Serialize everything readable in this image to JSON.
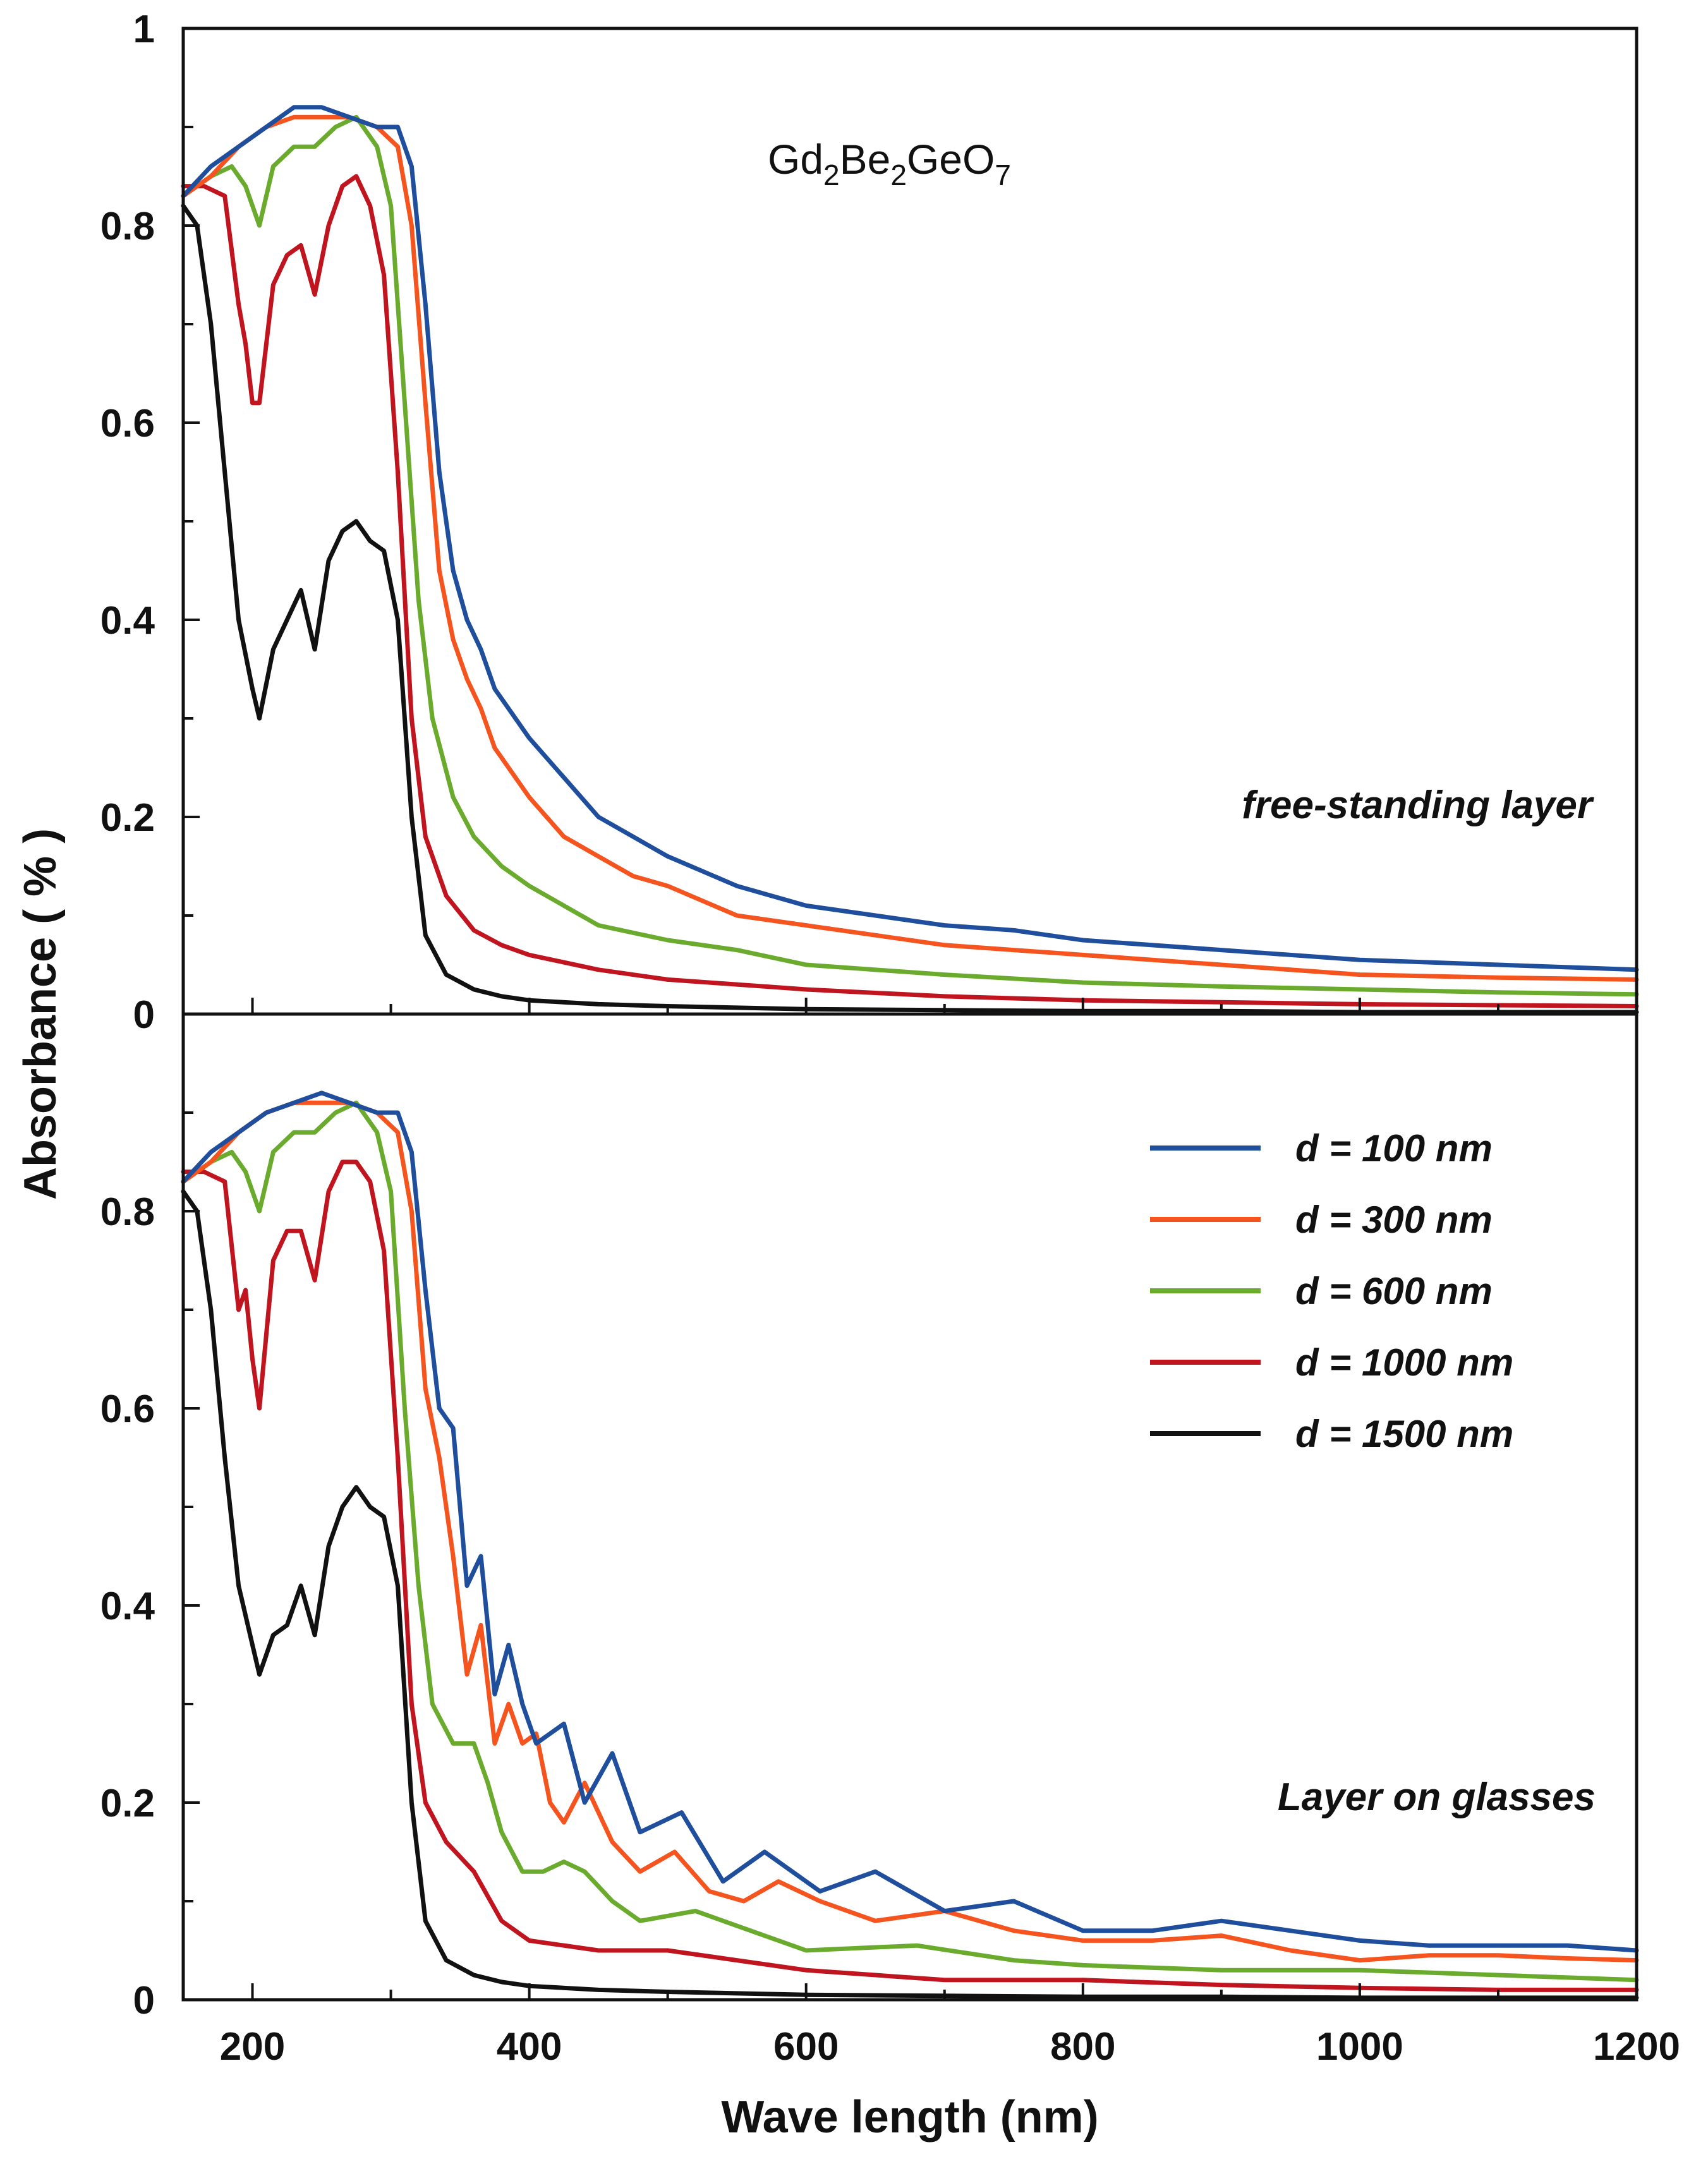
{
  "chart_data": [
    {
      "type": "line",
      "panel": "top",
      "title": "",
      "formula": {
        "parts": [
          "Gd",
          "2",
          "Be",
          "2",
          "GeO",
          "7"
        ]
      },
      "annotation": "free-standing layer",
      "xlabel": "",
      "ylabel": "Absorbance  ( % )",
      "xlim": [
        150,
        1200
      ],
      "ylim": [
        0,
        1
      ],
      "yticks": [
        0,
        0.2,
        0.4,
        0.6,
        0.8,
        1
      ],
      "ytick_labels": [
        "0",
        "0.2",
        "0.4",
        "0.6",
        "0.8",
        "1"
      ],
      "grid": false,
      "series": [
        {
          "name": "d = 100 nm",
          "color": "#1f4e9c",
          "x": [
            150,
            170,
            190,
            210,
            230,
            250,
            270,
            290,
            305,
            315,
            325,
            335,
            345,
            355,
            365,
            375,
            385,
            400,
            425,
            450,
            475,
            500,
            550,
            600,
            650,
            700,
            750,
            800,
            900,
            1000,
            1100,
            1200
          ],
          "y": [
            0.83,
            0.86,
            0.88,
            0.9,
            0.92,
            0.92,
            0.91,
            0.9,
            0.9,
            0.86,
            0.72,
            0.55,
            0.45,
            0.4,
            0.37,
            0.33,
            0.31,
            0.28,
            0.24,
            0.2,
            0.18,
            0.16,
            0.13,
            0.11,
            0.1,
            0.09,
            0.085,
            0.075,
            0.065,
            0.055,
            0.05,
            0.045
          ]
        },
        {
          "name": "d = 300 nm",
          "color": "#f5541f",
          "x": [
            150,
            170,
            190,
            210,
            230,
            250,
            270,
            290,
            305,
            315,
            325,
            335,
            345,
            355,
            365,
            375,
            385,
            400,
            425,
            450,
            475,
            500,
            550,
            600,
            650,
            700,
            750,
            800,
            900,
            1000,
            1100,
            1200
          ],
          "y": [
            0.83,
            0.85,
            0.88,
            0.9,
            0.91,
            0.91,
            0.91,
            0.9,
            0.88,
            0.8,
            0.62,
            0.45,
            0.38,
            0.34,
            0.31,
            0.27,
            0.25,
            0.22,
            0.18,
            0.16,
            0.14,
            0.13,
            0.1,
            0.09,
            0.08,
            0.07,
            0.065,
            0.06,
            0.05,
            0.04,
            0.037,
            0.035
          ]
        },
        {
          "name": "d = 600 nm",
          "color": "#6aab2e",
          "x": [
            150,
            170,
            185,
            195,
            205,
            215,
            230,
            245,
            260,
            275,
            290,
            300,
            310,
            320,
            330,
            345,
            360,
            380,
            400,
            425,
            450,
            500,
            550,
            600,
            700,
            800,
            900,
            1000,
            1100,
            1200
          ],
          "y": [
            0.83,
            0.85,
            0.86,
            0.84,
            0.8,
            0.86,
            0.88,
            0.88,
            0.9,
            0.91,
            0.88,
            0.82,
            0.62,
            0.42,
            0.3,
            0.22,
            0.18,
            0.15,
            0.13,
            0.11,
            0.09,
            0.075,
            0.065,
            0.05,
            0.04,
            0.032,
            0.028,
            0.025,
            0.022,
            0.02
          ]
        },
        {
          "name": "d = 1000 nm",
          "color": "#c0141f",
          "x": [
            150,
            165,
            180,
            190,
            195,
            200,
            205,
            215,
            225,
            235,
            245,
            255,
            265,
            275,
            285,
            295,
            305,
            315,
            325,
            340,
            360,
            380,
            400,
            450,
            500,
            600,
            700,
            800,
            900,
            1000,
            1100,
            1200
          ],
          "y": [
            0.84,
            0.84,
            0.83,
            0.72,
            0.68,
            0.62,
            0.62,
            0.74,
            0.77,
            0.78,
            0.73,
            0.8,
            0.84,
            0.85,
            0.82,
            0.75,
            0.55,
            0.3,
            0.18,
            0.12,
            0.085,
            0.07,
            0.06,
            0.045,
            0.035,
            0.025,
            0.018,
            0.014,
            0.012,
            0.01,
            0.009,
            0.008
          ]
        },
        {
          "name": "d = 1500 nm",
          "color": "#111111",
          "x": [
            150,
            160,
            170,
            180,
            190,
            200,
            205,
            215,
            225,
            235,
            245,
            255,
            265,
            275,
            285,
            295,
            305,
            315,
            325,
            340,
            360,
            380,
            400,
            450,
            500,
            600,
            700,
            800,
            900,
            1000,
            1100,
            1200
          ],
          "y": [
            0.82,
            0.8,
            0.7,
            0.55,
            0.4,
            0.33,
            0.3,
            0.37,
            0.4,
            0.43,
            0.37,
            0.46,
            0.49,
            0.5,
            0.48,
            0.47,
            0.4,
            0.2,
            0.08,
            0.04,
            0.025,
            0.018,
            0.014,
            0.01,
            0.008,
            0.005,
            0.004,
            0.003,
            0.003,
            0.002,
            0.002,
            0.002
          ]
        }
      ]
    },
    {
      "type": "line",
      "panel": "bottom",
      "title": "",
      "annotation": "Layer on glasses",
      "xlabel": "Wave length (nm)",
      "ylabel": "",
      "xlim": [
        150,
        1200
      ],
      "ylim": [
        0,
        1
      ],
      "xticks": [
        200,
        400,
        600,
        800,
        1000,
        1200
      ],
      "xtick_labels": [
        "200",
        "400",
        "600",
        "800",
        "1000",
        "1200"
      ],
      "yticks": [
        0,
        0.2,
        0.4,
        0.6,
        0.8
      ],
      "ytick_labels": [
        "0",
        "0.2",
        "0.4",
        "0.6",
        "0.8"
      ],
      "grid": false,
      "legend": {
        "position": "right",
        "entries": [
          "d = 100 nm",
          "d = 300 nm",
          "d = 600 nm",
          "d = 1000 nm",
          "d = 1500 nm"
        ]
      },
      "series": [
        {
          "name": "d = 100 nm",
          "color": "#1f4e9c",
          "x": [
            150,
            170,
            190,
            210,
            230,
            250,
            270,
            290,
            305,
            315,
            325,
            335,
            345,
            355,
            365,
            375,
            385,
            395,
            405,
            415,
            425,
            440,
            460,
            480,
            510,
            540,
            570,
            610,
            650,
            700,
            750,
            800,
            850,
            900,
            950,
            1000,
            1050,
            1100,
            1150,
            1200
          ],
          "y": [
            0.83,
            0.86,
            0.88,
            0.9,
            0.91,
            0.92,
            0.91,
            0.9,
            0.9,
            0.86,
            0.72,
            0.6,
            0.58,
            0.42,
            0.45,
            0.31,
            0.36,
            0.3,
            0.26,
            0.27,
            0.28,
            0.2,
            0.25,
            0.17,
            0.19,
            0.12,
            0.15,
            0.11,
            0.13,
            0.09,
            0.1,
            0.07,
            0.07,
            0.08,
            0.07,
            0.06,
            0.055,
            0.055,
            0.055,
            0.05
          ]
        },
        {
          "name": "d = 300 nm",
          "color": "#f5541f",
          "x": [
            150,
            170,
            190,
            210,
            230,
            250,
            270,
            290,
            305,
            315,
            325,
            335,
            345,
            355,
            365,
            375,
            385,
            395,
            405,
            415,
            425,
            440,
            460,
            480,
            505,
            530,
            555,
            580,
            610,
            650,
            700,
            750,
            800,
            850,
            900,
            950,
            1000,
            1050,
            1100,
            1150,
            1200
          ],
          "y": [
            0.83,
            0.85,
            0.88,
            0.9,
            0.91,
            0.91,
            0.91,
            0.9,
            0.88,
            0.8,
            0.62,
            0.55,
            0.45,
            0.33,
            0.38,
            0.26,
            0.3,
            0.26,
            0.27,
            0.2,
            0.18,
            0.22,
            0.16,
            0.13,
            0.15,
            0.11,
            0.1,
            0.12,
            0.1,
            0.08,
            0.09,
            0.07,
            0.06,
            0.06,
            0.065,
            0.05,
            0.04,
            0.045,
            0.045,
            0.042,
            0.04
          ]
        },
        {
          "name": "d = 600 nm",
          "color": "#6aab2e",
          "x": [
            150,
            170,
            185,
            195,
            205,
            215,
            230,
            245,
            260,
            275,
            290,
            300,
            310,
            320,
            330,
            345,
            360,
            370,
            380,
            395,
            410,
            425,
            440,
            460,
            480,
            520,
            560,
            600,
            680,
            750,
            800,
            900,
            1000,
            1100,
            1200
          ],
          "y": [
            0.83,
            0.85,
            0.86,
            0.84,
            0.8,
            0.86,
            0.88,
            0.88,
            0.9,
            0.91,
            0.88,
            0.82,
            0.6,
            0.42,
            0.3,
            0.26,
            0.26,
            0.22,
            0.17,
            0.13,
            0.13,
            0.14,
            0.13,
            0.1,
            0.08,
            0.09,
            0.07,
            0.05,
            0.055,
            0.04,
            0.035,
            0.03,
            0.03,
            0.025,
            0.02
          ]
        },
        {
          "name": "d = 1000 nm",
          "color": "#c0141f",
          "x": [
            150,
            165,
            180,
            190,
            195,
            200,
            205,
            215,
            225,
            235,
            245,
            255,
            265,
            275,
            285,
            295,
            305,
            315,
            325,
            340,
            360,
            380,
            400,
            450,
            500,
            550,
            600,
            700,
            800,
            900,
            1000,
            1100,
            1200
          ],
          "y": [
            0.84,
            0.84,
            0.83,
            0.7,
            0.72,
            0.65,
            0.6,
            0.75,
            0.78,
            0.78,
            0.73,
            0.82,
            0.85,
            0.85,
            0.83,
            0.76,
            0.55,
            0.3,
            0.2,
            0.16,
            0.13,
            0.08,
            0.06,
            0.05,
            0.05,
            0.04,
            0.03,
            0.02,
            0.02,
            0.015,
            0.012,
            0.01,
            0.01
          ]
        },
        {
          "name": "d = 1500 nm",
          "color": "#111111",
          "x": [
            150,
            160,
            170,
            180,
            190,
            200,
            205,
            215,
            225,
            235,
            245,
            255,
            265,
            275,
            285,
            295,
            305,
            315,
            325,
            340,
            360,
            380,
            400,
            450,
            500,
            600,
            700,
            800,
            900,
            1000,
            1100,
            1200
          ],
          "y": [
            0.82,
            0.8,
            0.7,
            0.55,
            0.42,
            0.36,
            0.33,
            0.37,
            0.38,
            0.42,
            0.37,
            0.46,
            0.5,
            0.52,
            0.5,
            0.49,
            0.42,
            0.2,
            0.08,
            0.04,
            0.025,
            0.018,
            0.014,
            0.01,
            0.008,
            0.005,
            0.004,
            0.003,
            0.003,
            0.002,
            0.002,
            0.002
          ]
        }
      ]
    }
  ]
}
